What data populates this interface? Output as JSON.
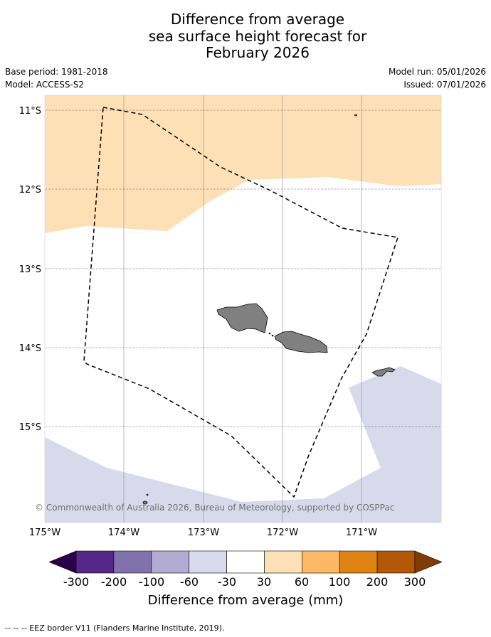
{
  "title": {
    "line1": "Difference from average",
    "line2": "sea surface height forecast for",
    "line3": "February 2026"
  },
  "meta": {
    "base_period": "Base period: 1981-2018",
    "model": "Model: ACCESS-S2",
    "model_run": "Model run: 05/01/2026",
    "issued": "Issued: 07/01/2026"
  },
  "map": {
    "lat_labels": [
      "11°S",
      "12°S",
      "13°S",
      "14°S",
      "15°S"
    ],
    "lon_labels": [
      "175°W",
      "174°W",
      "173°W",
      "172°W",
      "171°W"
    ],
    "credit": "© Commonwealth of Australia 2026, Bureau of Meteorology, supported by COSPPac"
  },
  "colorbar": {
    "ticks": [
      "-300",
      "-200",
      "-100",
      "-60",
      "-30",
      "30",
      "60",
      "100",
      "200",
      "300"
    ],
    "colors": [
      "#2d004b",
      "#542788",
      "#8073ac",
      "#b2abd2",
      "#d8daeb",
      "#ffffff",
      "#fee0b6",
      "#fdb863",
      "#e08214",
      "#b35806",
      "#7f3b08"
    ],
    "label": "Difference from average (mm)"
  },
  "footer": "--  --  -- EEZ border V11 (Flanders Marine Institute, 2019)."
}
